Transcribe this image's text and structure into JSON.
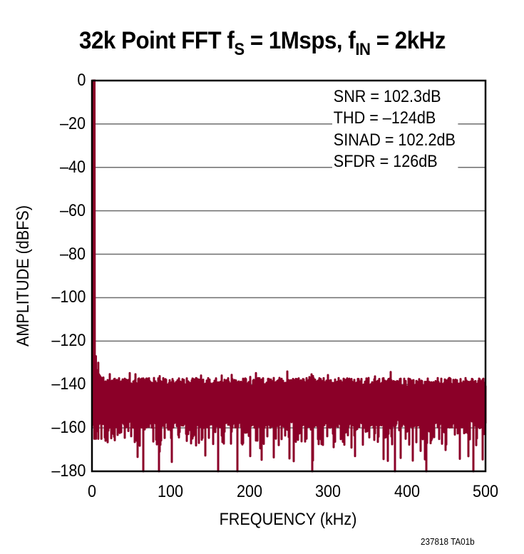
{
  "title": {
    "prefix": "32k Point FFT f",
    "sub1": "S",
    "mid": " = 1Msps, f",
    "sub2": "IN",
    "suffix": " = 2kHz"
  },
  "stats": [
    "SNR = 102.3dB",
    "THD = –124dB",
    "SINAD = 102.2dB",
    "SFDR = 126dB"
  ],
  "footnote": "237818 TA01b",
  "colors": {
    "trace": "#8B0028",
    "grid": "#6d6d6d",
    "frame": "#000000"
  },
  "chart_data": {
    "type": "line",
    "title": "32k Point FFT fS = 1Msps, fIN = 2kHz",
    "xlabel": "FREQUENCY (kHz)",
    "ylabel": "AMPLITUDE (dBFS)",
    "xlim": [
      0,
      500
    ],
    "ylim": [
      -180,
      0
    ],
    "x_ticks": [
      "0",
      "100",
      "200",
      "300",
      "400",
      "500"
    ],
    "y_ticks": [
      "0",
      "–20",
      "–40",
      "–60",
      "–80",
      "–100",
      "–120",
      "–140",
      "–160",
      "–180"
    ],
    "grid": "horizontal",
    "series": [
      {
        "name": "FFT spectrum",
        "description": "Fundamental at 2kHz reaching 0 dBFS; noise floor between approx -136 and -180 dBFS across 0-500 kHz, typical band -140 to -160 dBFS",
        "fundamental": {
          "x": 2,
          "y": 0
        },
        "near_fundamental_skirt": [
          {
            "x": 3,
            "y": -125
          },
          {
            "x": 5,
            "y": -127
          },
          {
            "x": 8,
            "y": -130
          },
          {
            "x": 12,
            "y": -138
          }
        ],
        "noise_floor_top": -137,
        "noise_floor_body_bottom": -156,
        "noise_min_spikes": [
          {
            "x": 65,
            "y": -180
          },
          {
            "x": 85,
            "y": -180
          },
          {
            "x": 160,
            "y": -180
          },
          {
            "x": 185,
            "y": -180
          },
          {
            "x": 280,
            "y": -180
          },
          {
            "x": 385,
            "y": -180
          },
          {
            "x": 425,
            "y": -180
          },
          {
            "x": 485,
            "y": -180
          }
        ]
      }
    ],
    "annotations": [
      "SNR = 102.3dB",
      "THD = –124dB",
      "SINAD = 102.2dB",
      "SFDR = 126dB"
    ]
  }
}
